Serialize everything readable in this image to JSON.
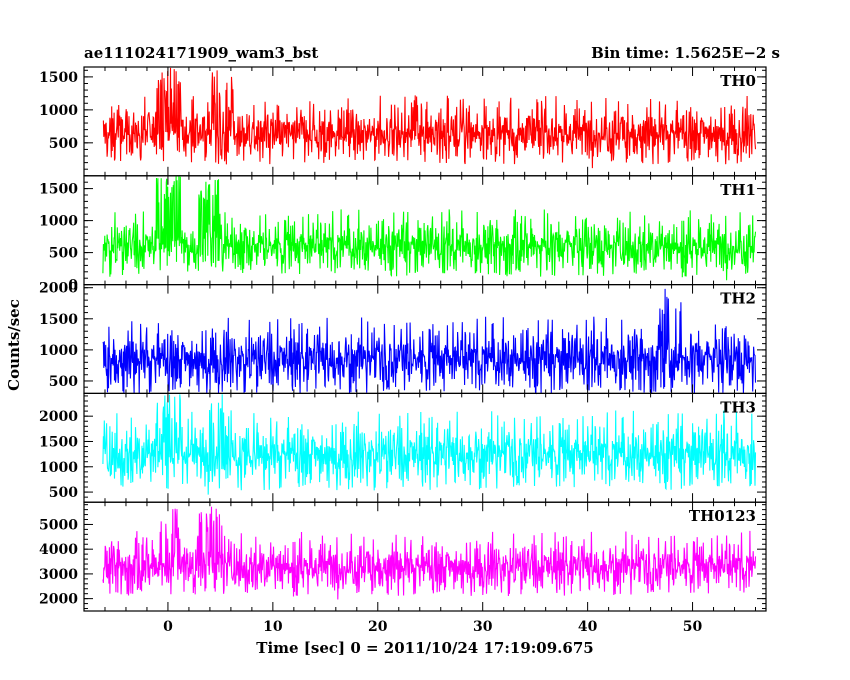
{
  "header": {
    "title_left": "ae111024171909_wam3_bst",
    "title_right": "Bin time: 1.5625E−2 s"
  },
  "chart_data": {
    "type": "line",
    "x_range": [
      -8,
      57
    ],
    "x_ticks": [
      0,
      10,
      20,
      30,
      40,
      50
    ],
    "xlabel": "Time [sec] 0 = 2011/10/24 17:19:09.675",
    "ylabel": "Counts/sec",
    "bin_time_s": 0.015625,
    "grid": false,
    "panels": [
      {
        "name": "TH0",
        "color": "#ff0000",
        "ylim": [
          0,
          1650
        ],
        "yticks": [
          500,
          1000,
          1500
        ],
        "x_start": -6.2,
        "x_end": 56.0,
        "mean": 650,
        "spread": 320,
        "events": [
          {
            "x": 0,
            "peak": 1650
          },
          {
            "x": 5,
            "peak": 1600
          }
        ]
      },
      {
        "name": "TH1",
        "color": "#00ff00",
        "ylim": [
          0,
          1700
        ],
        "yticks": [
          0,
          500,
          1000,
          1500
        ],
        "x_start": -6.2,
        "x_end": 56.0,
        "mean": 600,
        "spread": 320,
        "events": [
          {
            "x": 0,
            "peak": 1700
          },
          {
            "x": 4,
            "peak": 1650
          }
        ]
      },
      {
        "name": "TH2",
        "color": "#0000ff",
        "ylim": [
          300,
          2050
        ],
        "yticks": [
          500,
          1000,
          1500,
          2000
        ],
        "x_start": -6.2,
        "x_end": 56.0,
        "mean": 850,
        "spread": 380,
        "events": [
          {
            "x": 48,
            "peak": 2000
          }
        ]
      },
      {
        "name": "TH3",
        "color": "#00ffff",
        "ylim": [
          300,
          2450
        ],
        "yticks": [
          500,
          1000,
          1500,
          2000
        ],
        "x_start": -6.2,
        "x_end": 56.0,
        "mean": 1250,
        "spread": 480,
        "events": [
          {
            "x": 0,
            "peak": 2450
          },
          {
            "x": 5,
            "peak": 2450
          }
        ]
      },
      {
        "name": "TH0123",
        "color": "#ff00ff",
        "ylim": [
          1500,
          5900
        ],
        "yticks": [
          2000,
          3000,
          4000,
          5000
        ],
        "x_start": -6.2,
        "x_end": 56.0,
        "mean": 3300,
        "spread": 800,
        "events": [
          {
            "x": 0,
            "peak": 5800
          },
          {
            "x": 4,
            "peak": 5800
          }
        ]
      }
    ]
  }
}
